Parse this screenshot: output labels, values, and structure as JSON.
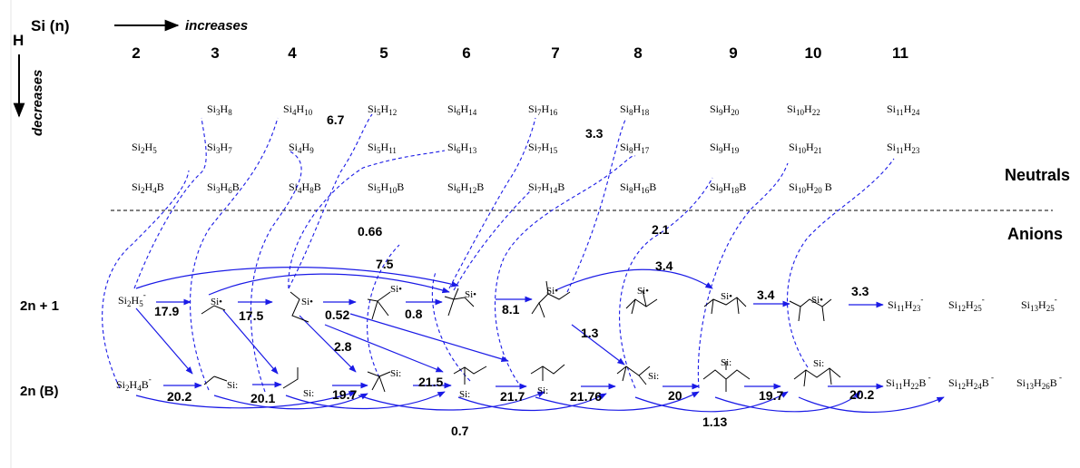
{
  "header": {
    "h_label": "H",
    "si_label": "Si  (n)",
    "increases": "increases",
    "decreases": "decreases"
  },
  "columns": [
    "2",
    "3",
    "4",
    "5",
    "6",
    "7",
    "8",
    "9",
    "10",
    "11"
  ],
  "neutrals": {
    "row1": [
      {
        "base": "Si",
        "n": "3",
        "h": "8"
      },
      {
        "base": "Si",
        "n": "4",
        "h": "10"
      },
      {
        "base": "Si",
        "n": "5",
        "h": "12"
      },
      {
        "base": "Si",
        "n": "6",
        "h": "14"
      },
      {
        "base": "Si",
        "n": "7",
        "h": "16"
      },
      {
        "base": "Si",
        "n": "8",
        "h": "18"
      },
      {
        "base": "Si",
        "n": "9",
        "h": "20"
      },
      {
        "base": "Si",
        "n": "10",
        "h": "22"
      },
      {
        "base": "Si",
        "n": "11",
        "h": "24"
      }
    ],
    "row2": [
      {
        "base": "Si",
        "n": "2",
        "h": "5"
      },
      {
        "base": "Si",
        "n": "3",
        "h": "7"
      },
      {
        "base": "Si",
        "n": "4",
        "h": "9"
      },
      {
        "base": "Si",
        "n": "5",
        "h": "11"
      },
      {
        "base": "Si",
        "n": "6",
        "h": "13"
      },
      {
        "base": "Si",
        "n": "7",
        "h": "15"
      },
      {
        "base": "Si",
        "n": "8",
        "h": "17"
      },
      {
        "base": "Si",
        "n": "9",
        "h": "19"
      },
      {
        "base": "Si",
        "n": "10",
        "h": "21"
      },
      {
        "base": "Si",
        "n": "11",
        "h": "23"
      }
    ],
    "row3": [
      {
        "base": "Si",
        "n": "2",
        "h": "4",
        "suffix": "B"
      },
      {
        "base": "Si",
        "n": "3",
        "h": "6",
        "suffix": "B"
      },
      {
        "base": "Si",
        "n": "4",
        "h": "8",
        "suffix": "B"
      },
      {
        "base": "Si",
        "n": "5",
        "h": "10",
        "suffix": "B"
      },
      {
        "base": "Si",
        "n": "6",
        "h": "12",
        "suffix": "B"
      },
      {
        "base": "Si",
        "n": "7",
        "h": "14",
        "suffix": "B"
      },
      {
        "base": "Si",
        "n": "8",
        "h": "16",
        "suffix": "B"
      },
      {
        "base": "Si",
        "n": "9",
        "h": "18",
        "suffix": "B"
      },
      {
        "base": "Si",
        "n": "10",
        "h": "20",
        "suffix": "  B"
      }
    ]
  },
  "sections": {
    "neutrals": "Neutrals",
    "anions": "Anions"
  },
  "rows": {
    "odd": "2n + 1",
    "even": "2n (B)"
  },
  "anion_formulas": {
    "odd_start": {
      "base": "Si",
      "n": "2",
      "h": "5",
      "charge": "-"
    },
    "even_start": {
      "base": "Si",
      "n": "2",
      "h": "4",
      "suffix": "B",
      "charge": "-"
    },
    "odd_end": [
      {
        "base": "Si",
        "n": "11",
        "h": "23",
        "charge": "-"
      },
      {
        "base": "Si",
        "n": "12",
        "h": "25",
        "charge": "-"
      },
      {
        "base": "Si",
        "n": "13",
        "h": "25",
        "charge": "-"
      }
    ],
    "even_end": [
      {
        "base": "Si",
        "n": "11",
        "h": "22",
        "suffix": "B",
        "charge": " -"
      },
      {
        "base": "Si",
        "n": "12",
        "h": "24",
        "suffix": "B",
        "charge": " -"
      },
      {
        "base": "Si",
        "n": "13",
        "h": "26",
        "suffix": "B",
        "charge": " -"
      }
    ]
  },
  "si_radical": "Si",
  "values": {
    "odd_steps": [
      "17.9",
      "17.5",
      "0.52",
      "0.8",
      "8.1",
      "3.4",
      "3.3"
    ],
    "even_steps": [
      "20.2",
      "20.1",
      "19.7",
      "21.5",
      "21.7",
      "21.76",
      "20",
      "19.7",
      "20.2"
    ],
    "skip_odd": [
      "7.5",
      "3.4"
    ],
    "cross": [
      "2.8",
      "1.3"
    ],
    "neutral_links": [
      "6.7",
      "0.66",
      "3.3",
      "2.1"
    ],
    "bottom_skip": [
      "0.7",
      "1.13"
    ]
  },
  "colors": {
    "arrow": "#1a1ae6",
    "text": "#000000",
    "divider": "#000000"
  }
}
